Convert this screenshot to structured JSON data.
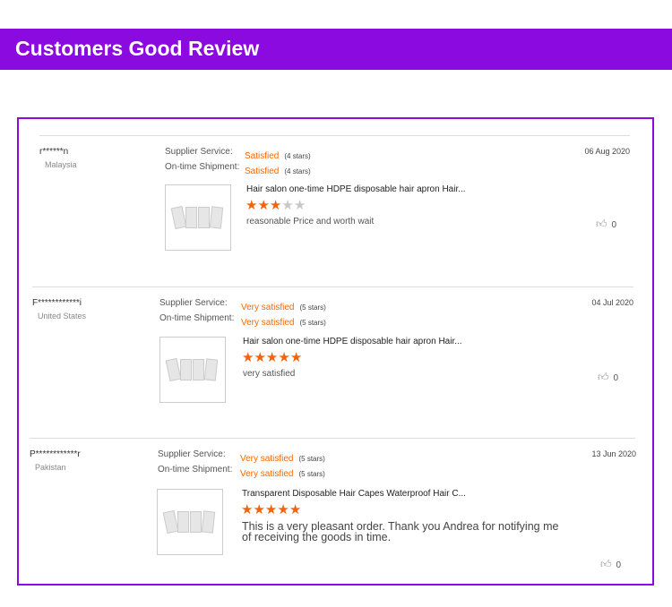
{
  "header": {
    "title": "Customers Good Review"
  },
  "labels": {
    "supplier": "Supplier Service:",
    "shipment": "On-time Shipment:"
  },
  "reviews": [
    {
      "name": "r******n",
      "country": "Malaysia",
      "supplier_rating": "Satisfied",
      "supplier_stars": "(4 stars)",
      "shipment_rating": "Satisfied",
      "shipment_stars": "(4 stars)",
      "date": "06 Aug 2020",
      "product": "Hair salon one-time HDPE disposable hair apron Hair...",
      "rating": 3,
      "text": "reasonable Price and worth wait",
      "likes": "0"
    },
    {
      "name": "F************i",
      "country": "United States",
      "supplier_rating": "Very satisfied",
      "supplier_stars": "(5 stars)",
      "shipment_rating": "Very satisfied",
      "shipment_stars": "(5 stars)",
      "date": "04 Jul 2020",
      "product": "Hair salon one-time HDPE disposable hair apron Hair...",
      "rating": 5,
      "text": "very satisfied",
      "likes": "0"
    },
    {
      "name": "P************r",
      "country": "Pakistan",
      "supplier_rating": "Very satisfied",
      "supplier_stars": "(5 stars)",
      "shipment_rating": "Very satisfied",
      "shipment_stars": "(5 stars)",
      "date": "13 Jun 2020",
      "product": "Transparent Disposable Hair Capes Waterproof Hair C...",
      "rating": 5,
      "text": "This is a very pleasant order. Thank you Andrea for notifying me of receiving the goods in time.",
      "likes": "0"
    }
  ],
  "colors": {
    "accent": "#8a0ae0",
    "rating": "#f5620c"
  }
}
